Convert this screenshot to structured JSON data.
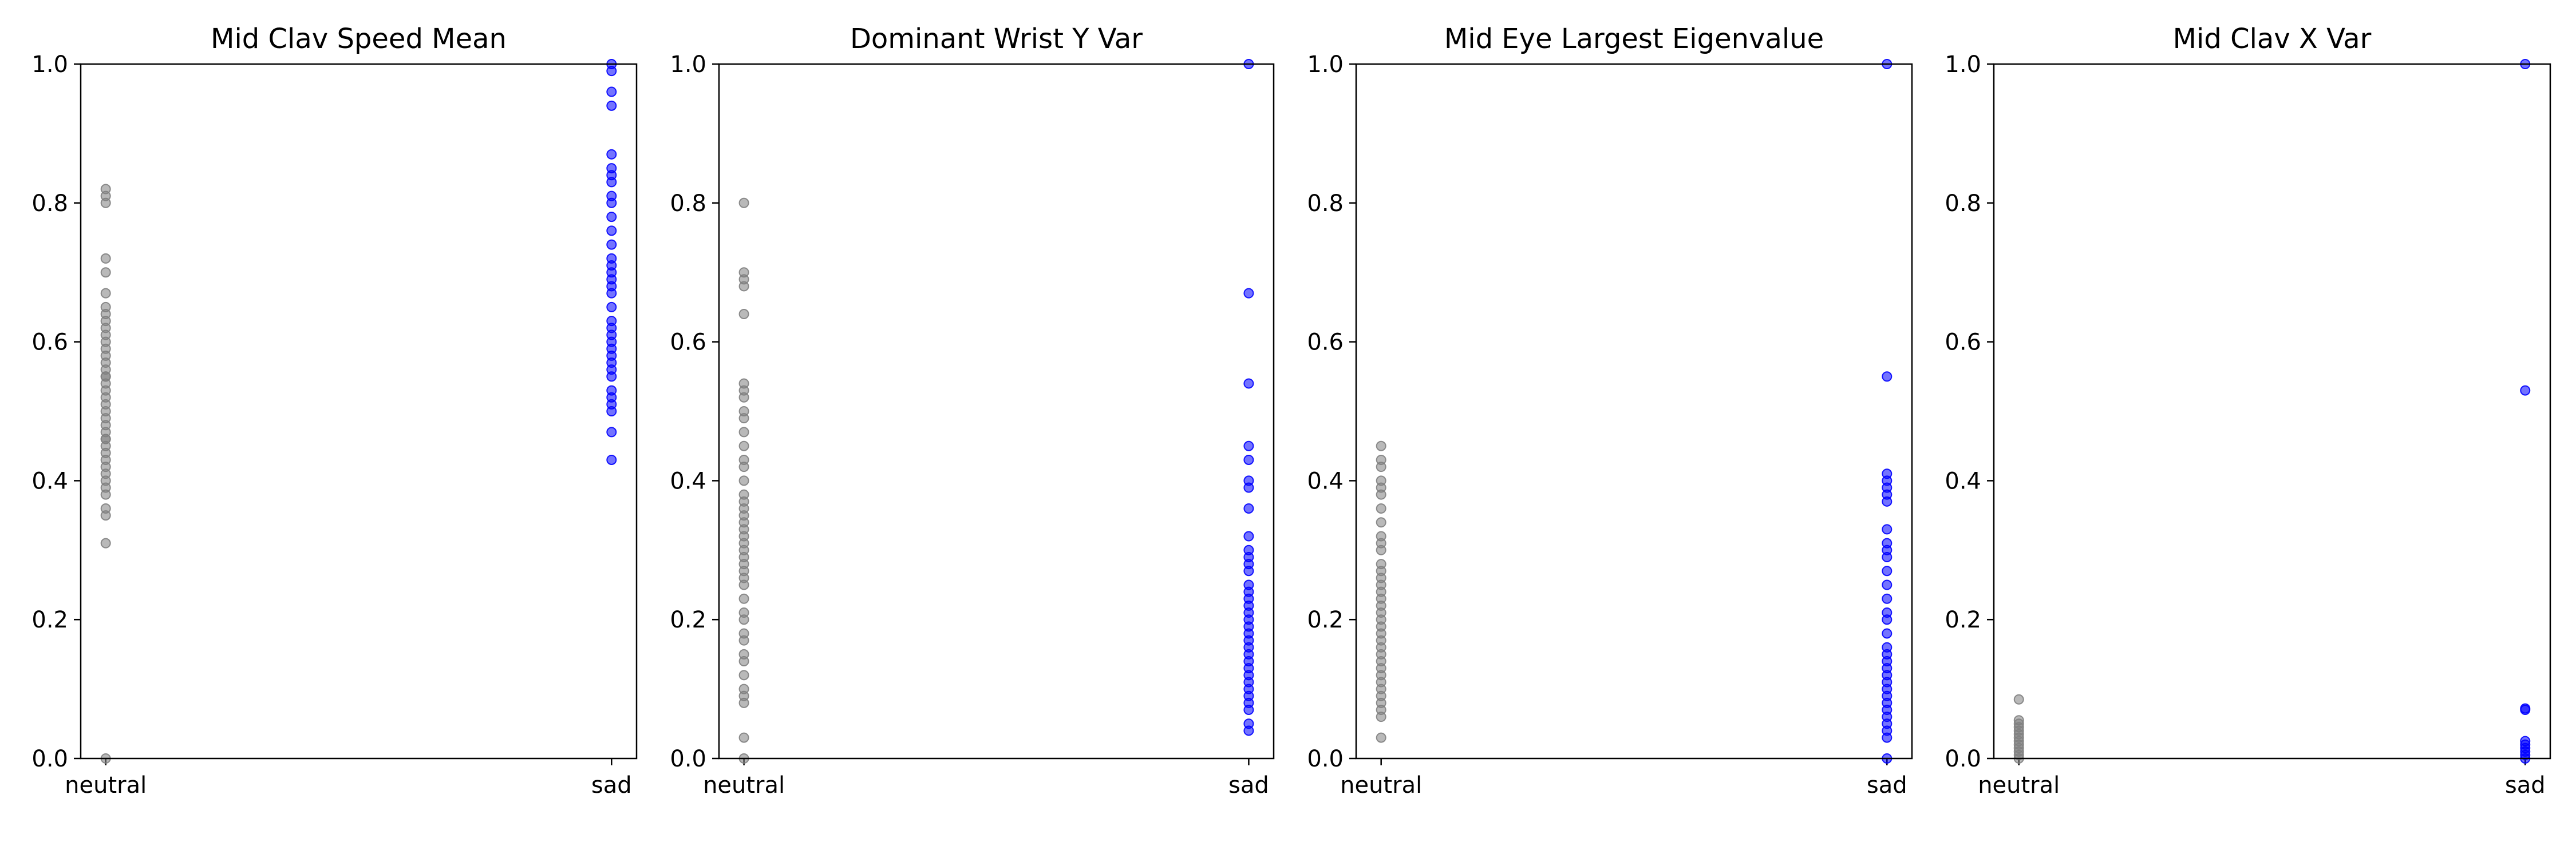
{
  "colors": {
    "neutral": "#808080",
    "sad": "#0000ff",
    "axis": "#000000",
    "background": "#ffffff"
  },
  "chart_data": [
    {
      "type": "scatter",
      "title": "Mid Clav Speed Mean",
      "categories": [
        "neutral",
        "sad"
      ],
      "ylim": [
        0,
        1
      ],
      "yticks": [
        "0.0",
        "0.2",
        "0.4",
        "0.6",
        "0.8",
        "1.0"
      ],
      "grid": false,
      "series": [
        {
          "category": "neutral",
          "color": "#808080",
          "values": [
            0.0,
            0.31,
            0.35,
            0.36,
            0.38,
            0.39,
            0.4,
            0.41,
            0.42,
            0.43,
            0.44,
            0.45,
            0.46,
            0.46,
            0.47,
            0.48,
            0.49,
            0.5,
            0.51,
            0.52,
            0.53,
            0.54,
            0.55,
            0.55,
            0.56,
            0.57,
            0.58,
            0.59,
            0.6,
            0.61,
            0.62,
            0.63,
            0.64,
            0.65,
            0.67,
            0.7,
            0.72,
            0.8,
            0.81,
            0.82
          ]
        },
        {
          "category": "sad",
          "color": "#0000ff",
          "values": [
            0.43,
            0.47,
            0.5,
            0.51,
            0.52,
            0.53,
            0.55,
            0.56,
            0.57,
            0.58,
            0.59,
            0.6,
            0.61,
            0.62,
            0.63,
            0.65,
            0.67,
            0.68,
            0.69,
            0.7,
            0.71,
            0.72,
            0.74,
            0.76,
            0.78,
            0.8,
            0.81,
            0.83,
            0.84,
            0.85,
            0.87,
            0.94,
            0.96,
            0.99,
            1.0
          ]
        }
      ]
    },
    {
      "type": "scatter",
      "title": "Dominant Wrist Y Var",
      "categories": [
        "neutral",
        "sad"
      ],
      "ylim": [
        0,
        1
      ],
      "yticks": [
        "0.0",
        "0.2",
        "0.4",
        "0.6",
        "0.8",
        "1.0"
      ],
      "grid": false,
      "series": [
        {
          "category": "neutral",
          "color": "#808080",
          "values": [
            0.0,
            0.03,
            0.08,
            0.09,
            0.1,
            0.12,
            0.14,
            0.15,
            0.17,
            0.18,
            0.2,
            0.21,
            0.23,
            0.25,
            0.26,
            0.27,
            0.28,
            0.29,
            0.3,
            0.31,
            0.32,
            0.33,
            0.34,
            0.35,
            0.36,
            0.37,
            0.38,
            0.4,
            0.42,
            0.43,
            0.45,
            0.47,
            0.49,
            0.5,
            0.52,
            0.53,
            0.54,
            0.64,
            0.68,
            0.69,
            0.7,
            0.8
          ]
        },
        {
          "category": "sad",
          "color": "#0000ff",
          "values": [
            0.04,
            0.05,
            0.07,
            0.08,
            0.09,
            0.1,
            0.11,
            0.12,
            0.13,
            0.14,
            0.15,
            0.16,
            0.17,
            0.18,
            0.19,
            0.2,
            0.21,
            0.22,
            0.23,
            0.24,
            0.25,
            0.27,
            0.28,
            0.29,
            0.3,
            0.32,
            0.36,
            0.39,
            0.4,
            0.43,
            0.45,
            0.54,
            0.67,
            1.0
          ]
        }
      ]
    },
    {
      "type": "scatter",
      "title": "Mid Eye Largest Eigenvalue",
      "categories": [
        "neutral",
        "sad"
      ],
      "ylim": [
        0,
        1
      ],
      "yticks": [
        "0.0",
        "0.2",
        "0.4",
        "0.6",
        "0.8",
        "1.0"
      ],
      "grid": false,
      "series": [
        {
          "category": "neutral",
          "color": "#808080",
          "values": [
            0.03,
            0.06,
            0.07,
            0.08,
            0.09,
            0.1,
            0.11,
            0.12,
            0.13,
            0.14,
            0.15,
            0.16,
            0.17,
            0.18,
            0.19,
            0.2,
            0.21,
            0.22,
            0.23,
            0.24,
            0.25,
            0.26,
            0.27,
            0.28,
            0.3,
            0.31,
            0.32,
            0.34,
            0.36,
            0.38,
            0.39,
            0.4,
            0.42,
            0.43,
            0.45
          ]
        },
        {
          "category": "sad",
          "color": "#0000ff",
          "values": [
            0.0,
            0.03,
            0.04,
            0.05,
            0.06,
            0.07,
            0.08,
            0.09,
            0.1,
            0.11,
            0.12,
            0.13,
            0.14,
            0.15,
            0.16,
            0.18,
            0.2,
            0.21,
            0.23,
            0.25,
            0.27,
            0.29,
            0.3,
            0.31,
            0.33,
            0.37,
            0.38,
            0.39,
            0.4,
            0.41,
            0.55,
            1.0
          ]
        }
      ]
    },
    {
      "type": "scatter",
      "title": "Mid Clav X Var",
      "categories": [
        "neutral",
        "sad"
      ],
      "ylim": [
        0,
        1
      ],
      "yticks": [
        "0.0",
        "0.2",
        "0.4",
        "0.6",
        "0.8",
        "1.0"
      ],
      "grid": false,
      "series": [
        {
          "category": "neutral",
          "color": "#808080",
          "values": [
            0.0,
            0.005,
            0.01,
            0.015,
            0.02,
            0.025,
            0.03,
            0.035,
            0.04,
            0.045,
            0.05,
            0.055,
            0.085
          ]
        },
        {
          "category": "sad",
          "color": "#0000ff",
          "values": [
            0.0,
            0.005,
            0.01,
            0.015,
            0.02,
            0.025,
            0.07,
            0.072,
            0.53,
            1.0
          ]
        }
      ]
    }
  ]
}
